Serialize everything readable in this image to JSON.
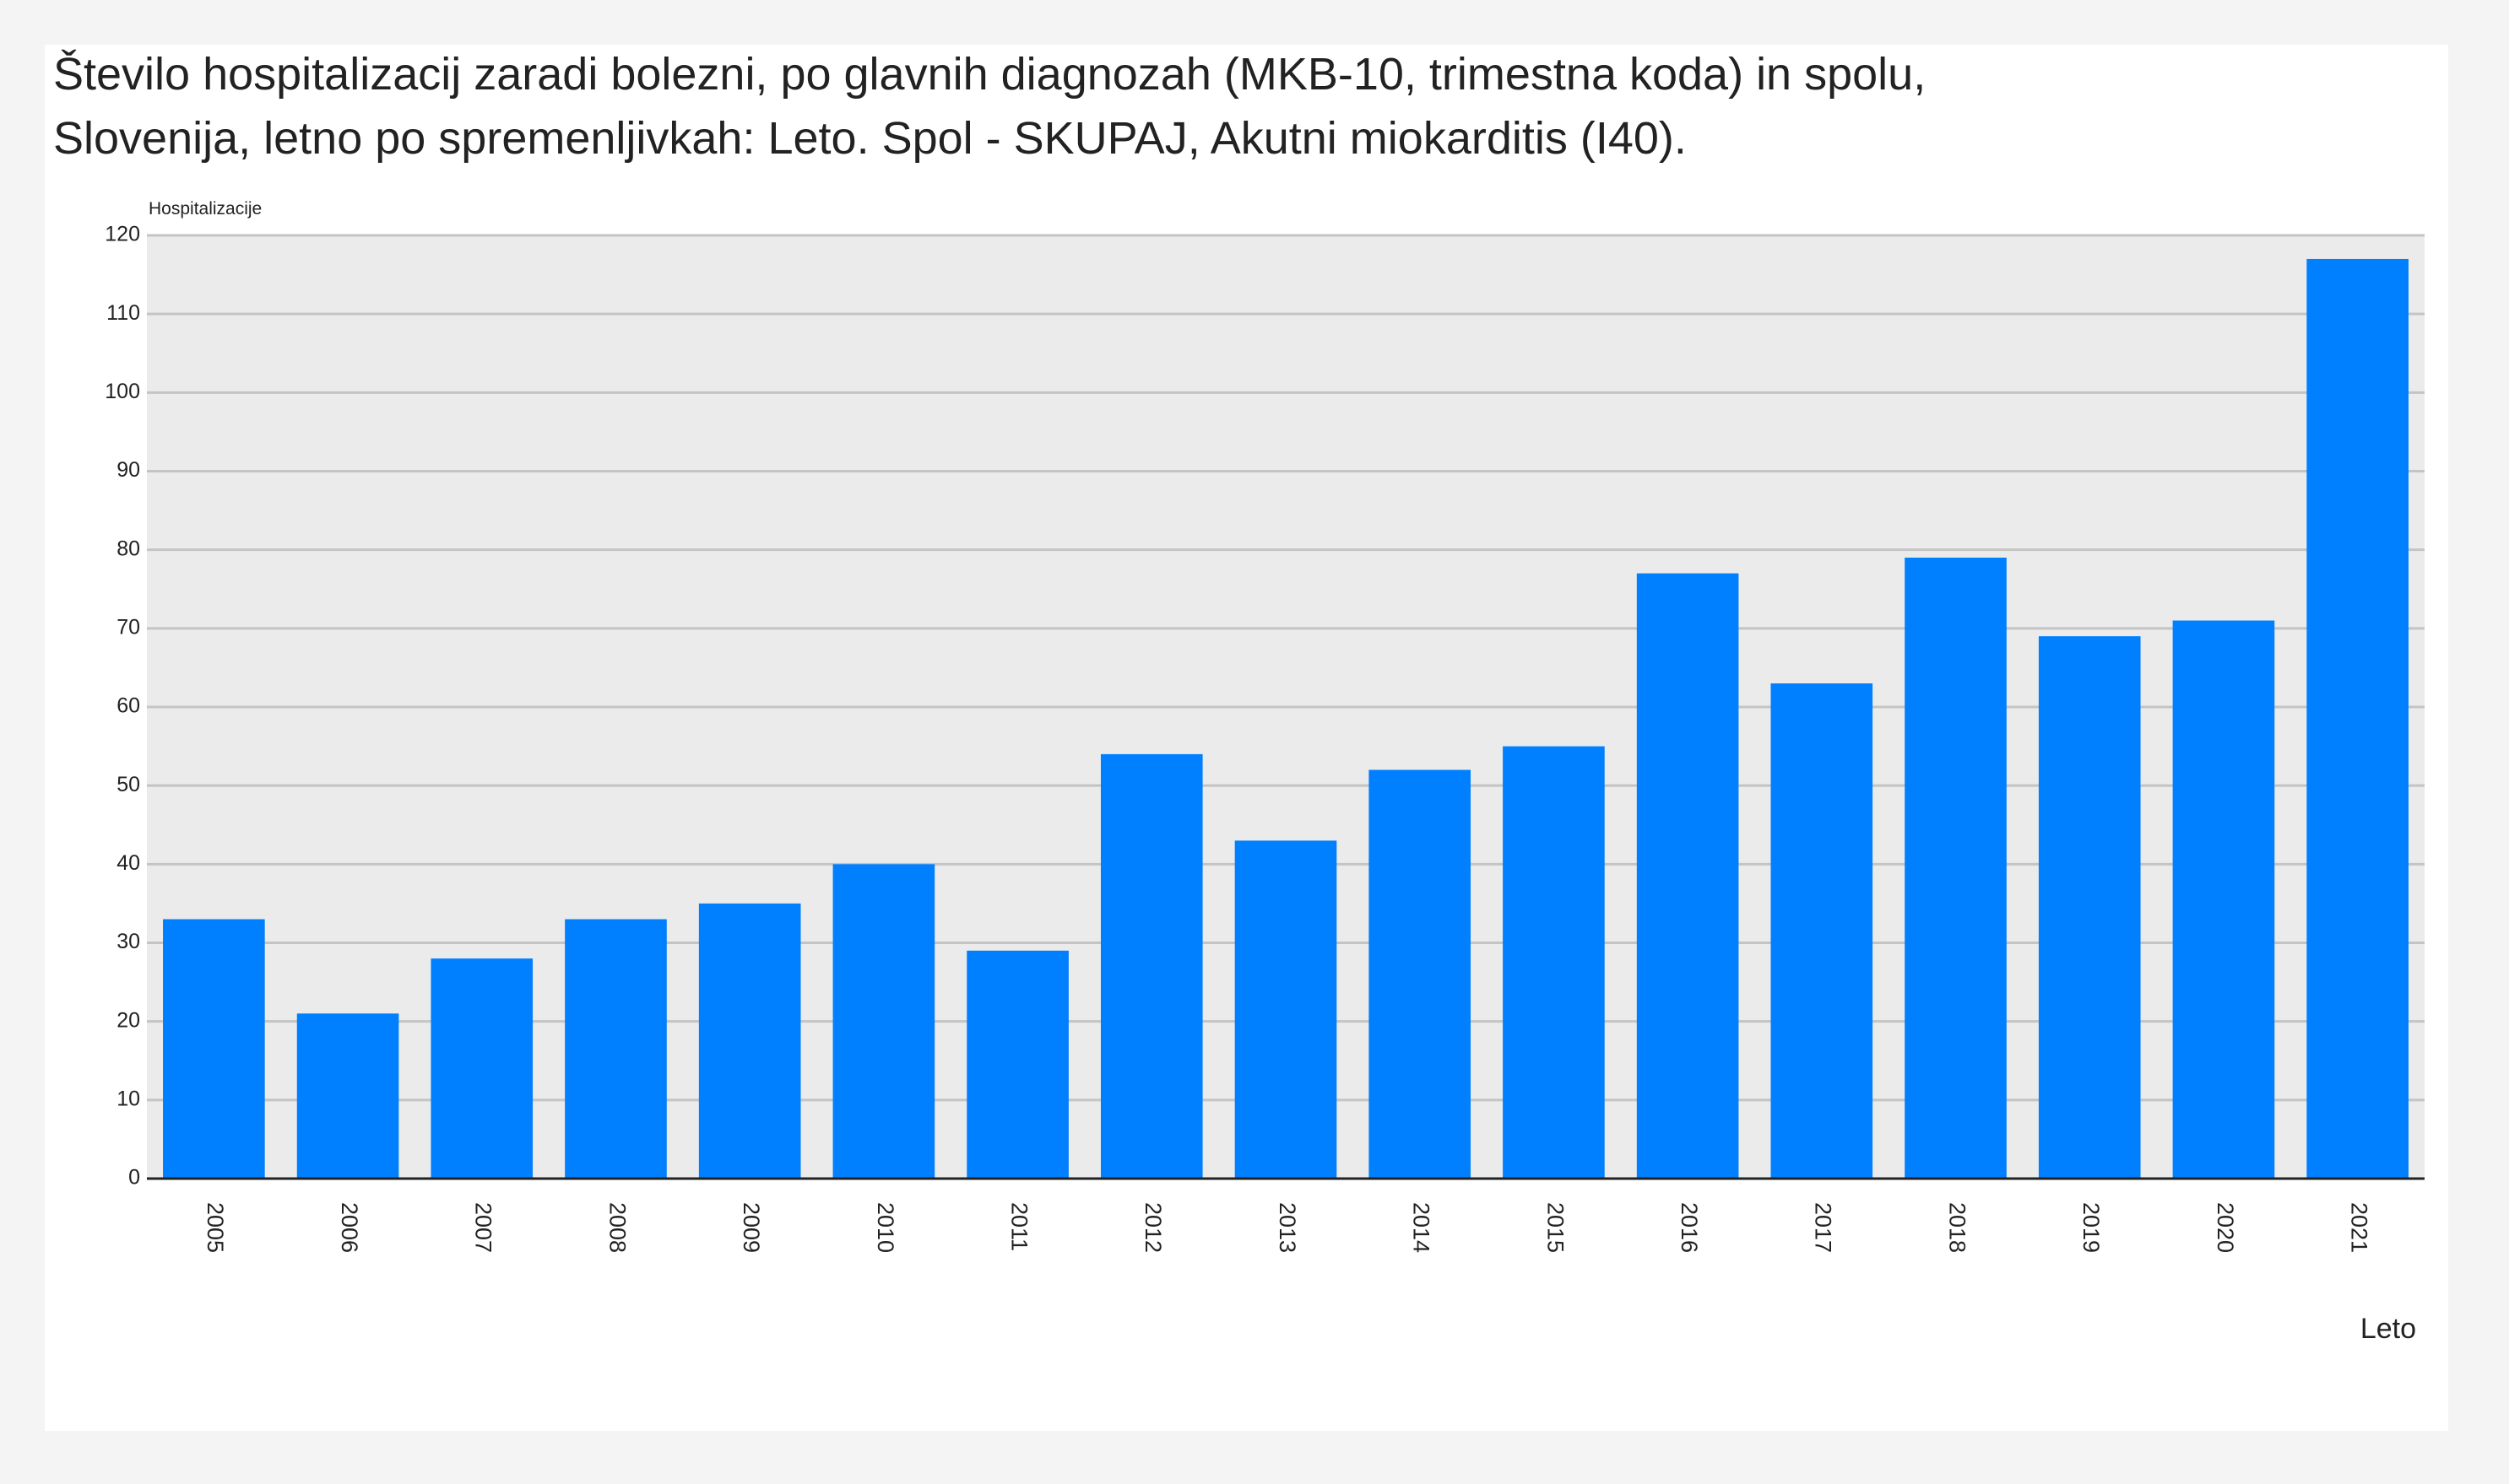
{
  "chart_data": {
    "type": "bar",
    "title": [
      "Število hospitalizacij zaradi bolezni, po glavnih diagnozah (MKB-10, trimestna koda) in spolu,",
      "Slovenija, letno po spremenljivkah: Leto. Spol - SKUPAJ, Akutni miokarditis (I40)."
    ],
    "y_label": "Hospitalizacije",
    "x_label": "Leto",
    "categories": [
      "2005",
      "2006",
      "2007",
      "2008",
      "2009",
      "2010",
      "2011",
      "2012",
      "2013",
      "2014",
      "2015",
      "2016",
      "2017",
      "2018",
      "2019",
      "2020",
      "2021"
    ],
    "values": [
      33,
      21,
      28,
      33,
      35,
      40,
      29,
      54,
      43,
      52,
      55,
      77,
      63,
      79,
      69,
      71,
      117
    ],
    "color": "#007fff",
    "ylim": [
      0,
      120
    ],
    "yticks": [
      0,
      10,
      20,
      30,
      40,
      50,
      60,
      70,
      80,
      90,
      100,
      110,
      120
    ],
    "grid": true
  }
}
